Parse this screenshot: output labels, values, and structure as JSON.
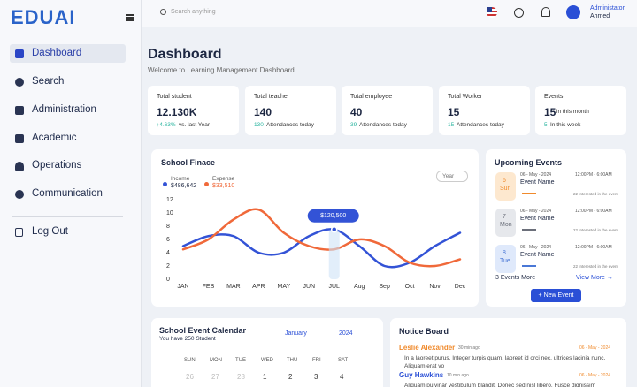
{
  "sidebar": {
    "logo": "EDUAI",
    "nav": [
      "Dashboard",
      "Search",
      "Administration",
      "Academic",
      "Operations",
      "Communication"
    ],
    "logout": "Log Out"
  },
  "topbar": {
    "search_placeholder": "Search anything",
    "user_role": "Administator",
    "user_name": "Ahmed"
  },
  "header": {
    "title": "Dashboard",
    "subtitle": "Welcome to Learning Management Dashboard."
  },
  "stats": [
    {
      "label": "Total student",
      "value": "12.130K",
      "delta": "↑4.63%",
      "note": "vs. last Year"
    },
    {
      "label": "Total teacher",
      "value": "140",
      "delta": "130",
      "note": "Attendances today"
    },
    {
      "label": "Total employee",
      "value": "40",
      "delta": "39",
      "note": "Attendances today"
    },
    {
      "label": "Total Worker",
      "value": "15",
      "delta": "15",
      "note": "Attendances today"
    },
    {
      "label": "Events",
      "value": "15",
      "value_note": "in this month",
      "delta": "5",
      "note": "In this week"
    }
  ],
  "chart_data": {
    "type": "line",
    "title": "School Finace",
    "dropdown": "Year",
    "categories": [
      "JAN",
      "FEB",
      "MAR",
      "APR",
      "MAY",
      "JUN",
      "JUL",
      "Aug",
      "Sep",
      "Oct",
      "Nov",
      "Dec"
    ],
    "series": [
      {
        "name": "Income",
        "total": "$486,642",
        "color": "#3353d6",
        "values": [
          5,
          6.5,
          6.5,
          4,
          4,
          6.5,
          7.5,
          5,
          2,
          2.5,
          5,
          7
        ]
      },
      {
        "name": "Expense",
        "total": "$33,510",
        "color": "#f0693a",
        "values": [
          4.5,
          6,
          9,
          10.5,
          7,
          5,
          4.5,
          6,
          5,
          2.5,
          2,
          3
        ]
      }
    ],
    "ylim": [
      0,
      12
    ],
    "yticks": [
      0,
      2,
      4,
      6,
      8,
      10,
      12
    ],
    "annotation": {
      "label": "$120,500",
      "category": "JUL"
    }
  },
  "events": {
    "title": "Upcoming Events",
    "items": [
      {
        "day": "6",
        "weekday": "Sun",
        "date": "06 - May - 2024",
        "name": "Event Name",
        "time": "12:00PM - 6:00AM",
        "interest": "22 Interested in the event"
      },
      {
        "day": "7",
        "weekday": "Mon",
        "date": "06 - May - 2024",
        "name": "Event Name",
        "time": "12:00PM - 6:00AM",
        "interest": "22 Interested in the event"
      },
      {
        "day": "8",
        "weekday": "Tue",
        "date": "06 - May - 2024",
        "name": "Event Name",
        "time": "12:00PM - 6:00AM",
        "interest": "22 Interested in the event"
      }
    ],
    "more": "3 Events More",
    "view_more": "View More →",
    "button": "+ New Event"
  },
  "calendar": {
    "title": "School Event Calendar",
    "subtitle": "You have 250 Student",
    "month": "January",
    "year": "2024",
    "weekdays": [
      "SUN",
      "MON",
      "TUE",
      "WED",
      "THU",
      "FRI",
      "SAT"
    ],
    "dates": [
      "26",
      "27",
      "28",
      "1",
      "2",
      "3",
      "4"
    ]
  },
  "notices": {
    "title": "Notice Board",
    "items": [
      {
        "name": "Leslie Alexander",
        "ago": "30 min ago",
        "date": "06 - May - 2024",
        "text": "In a laoreet purus. Integer turpis quam, laoreet id orci nec, ultrices lacinia nunc. Aliquam erat vo"
      },
      {
        "name": "Guy Hawkins",
        "ago": "10 min ago",
        "date": "06 - May - 2024",
        "text": "Aliquam pulvinar vestibulum blandit. Donec sed nisl libero. Fusce dignissim"
      }
    ]
  }
}
